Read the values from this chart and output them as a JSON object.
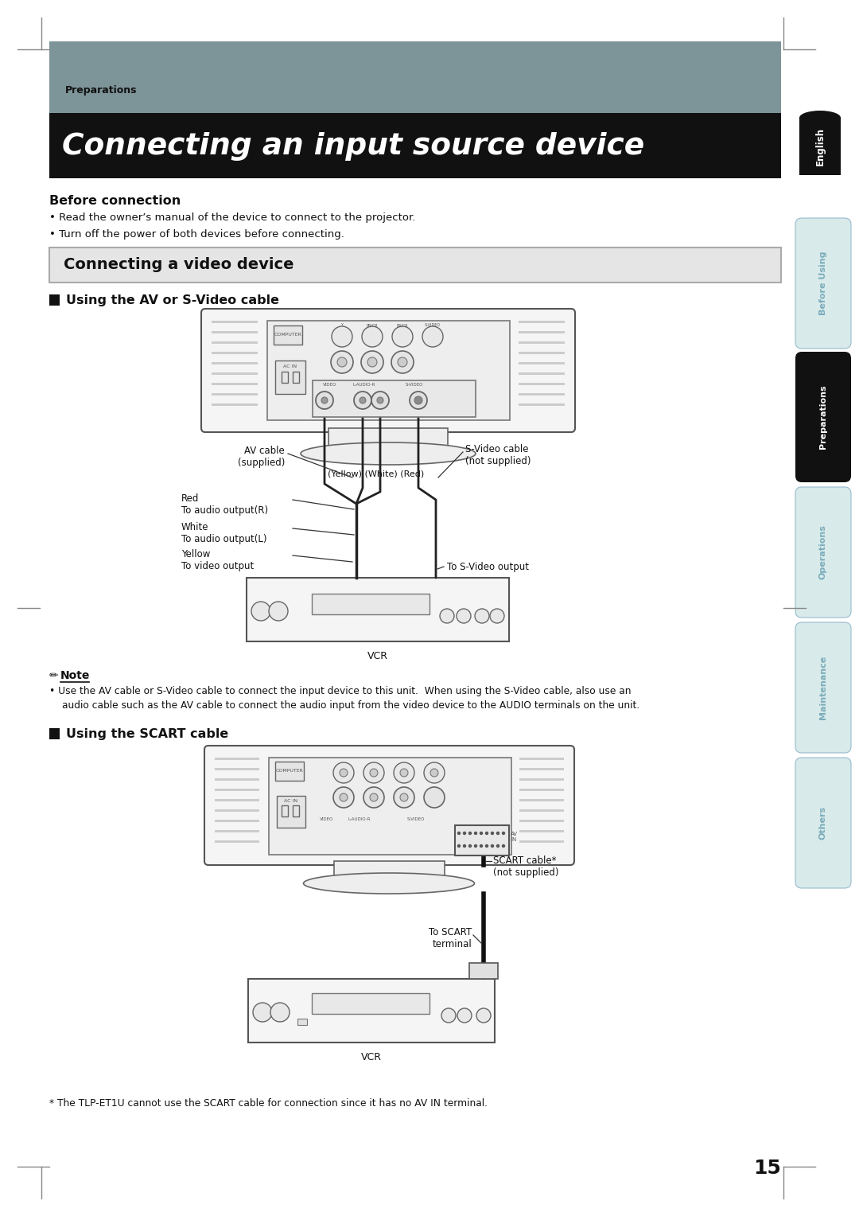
{
  "page_bg": "#ffffff",
  "header_bg": "#7d9498",
  "title_bg": "#111111",
  "title_text": "Connecting an input source device",
  "header_label": "Preparations",
  "section_title": "Connecting a video device",
  "before_connection_title": "Before connection",
  "bullet1": "Read the owner’s manual of the device to connect to the projector.",
  "bullet2": "Turn off the power of both devices before connecting.",
  "subsection1": "Using the AV or S-Video cable",
  "subsection2": "Using the SCART cable",
  "note_text_line1": "Use the AV cable or S-Video cable to connect the input device to this unit.  When using the S-Video cable, also use an",
  "note_text_line2": "audio cable such as the AV cable to connect the audio input from the video device to the AUDIO terminals on the unit.",
  "footer_note": "* The TLP-ET1U cannot use the SCART cable for connection since it has no AV IN terminal.",
  "page_number": "15",
  "yellow_white_red": "(Yellow) (White) (Red)",
  "av_cable": "AV cable\n(supplied)",
  "svideo_cable": "S-Video cable\n(not supplied)",
  "red_label": "Red\nTo audio output(R)",
  "white_label": "White\nTo audio output(L)",
  "yellow_label": "Yellow\nTo video output",
  "svideo_out": "To S-Video output",
  "vcr_label": "VCR",
  "scart_cable": "SCART cable*\n(not supplied)",
  "scart_terminal": "To SCART\nterminal"
}
